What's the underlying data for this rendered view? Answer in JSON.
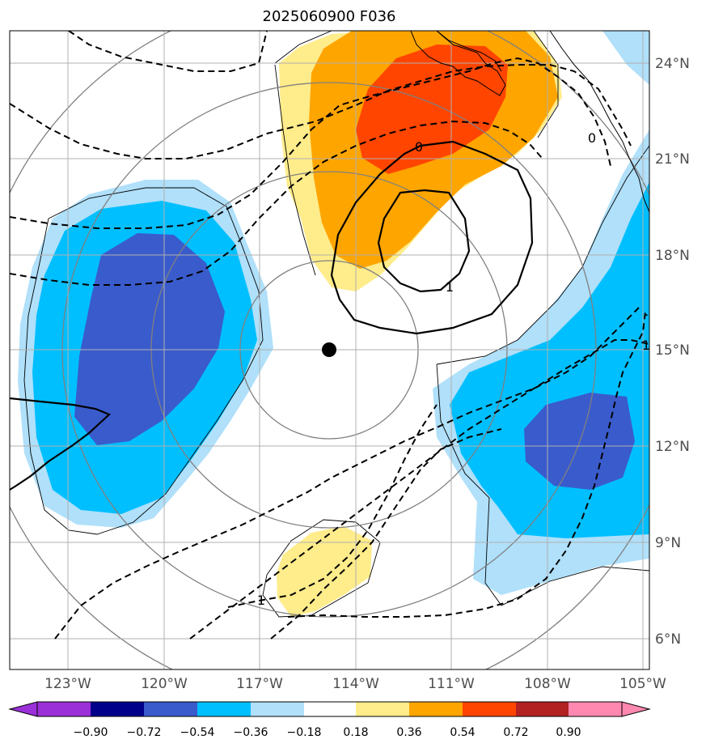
{
  "title": "2025060900 F036",
  "lat_labels": [
    "24°N",
    "21°N",
    "18°N",
    "15°N",
    "12°N",
    "9°N",
    "6°N"
  ],
  "lon_labels": [
    "123°W",
    "120°W",
    "117°W",
    "114°W",
    "111°W",
    "108°W",
    "105°W"
  ],
  "colorbar": {
    "ticks": [
      "−0.90",
      "−0.72",
      "−0.54",
      "−0.36",
      "−0.18",
      "0.18",
      "0.36",
      "0.54",
      "0.72",
      "0.90"
    ],
    "colors": [
      "#9b30d9",
      "#00008b",
      "#3a5bcb",
      "#00bfff",
      "#b0e0fa",
      "#ffffff",
      "#ffec8b",
      "#ffa500",
      "#ff4500",
      "#b22222",
      "#ff88b0"
    ]
  },
  "contour_labels": [
    "0",
    "1",
    "1",
    "1",
    "0"
  ],
  "colors": {
    "grid": "#b0b0b0",
    "coast": "#000000",
    "gray_contour": "#808080",
    "marker": "#000000"
  },
  "marker": {
    "name": "storm-center",
    "lat": 15.0,
    "lon": -114.9
  }
}
